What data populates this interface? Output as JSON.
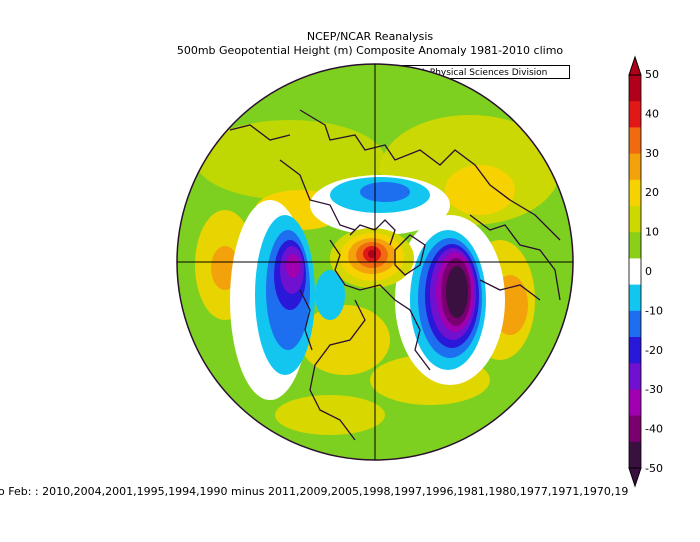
{
  "header": {
    "title": "NCEP/NCAR Reanalysis",
    "subtitle": "500mb Geopotential Height (m) Composite Anomaly 1981-2010 climo",
    "credit": "NOAA/ESRL Physical Sciences Division"
  },
  "footer": {
    "text": "o Feb: : 2010,2004,2001,1995,1994,1990 minus 2011,2009,2005,1998,1997,1996,1981,1980,1977,1971,1970,19"
  },
  "colorbar": {
    "ticks": [
      "50",
      "40",
      "30",
      "20",
      "10",
      "0",
      "-10",
      "-20",
      "-30",
      "-40",
      "-50"
    ],
    "colors": [
      "#b0001a",
      "#e01818",
      "#f06a10",
      "#f4a20c",
      "#f6d200",
      "#ccd800",
      "#8ad018",
      "#ffffff",
      "#12c6f0",
      "#1e6ef0",
      "#2a18d8",
      "#7010d0",
      "#a000b0",
      "#7a0070",
      "#3a1040"
    ]
  }
}
